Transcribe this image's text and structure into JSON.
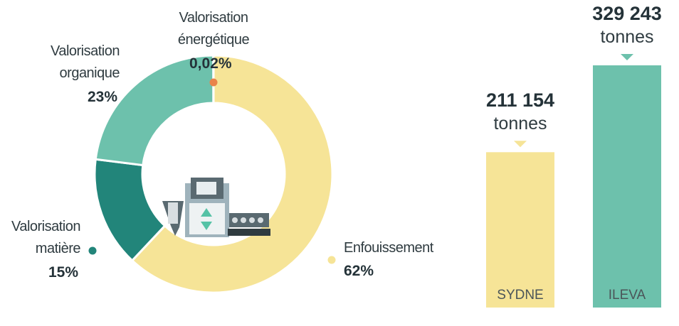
{
  "chart_data": [
    {
      "type": "pie",
      "categories": [
        "Enfouissement",
        "Valorisation matière",
        "Valorisation organique",
        "Valorisation énergétique"
      ],
      "values": [
        62,
        15,
        23,
        0.02
      ],
      "value_labels": [
        "62%",
        "15%",
        "23%",
        "0,02%"
      ],
      "colors": [
        "#f6e497",
        "#22857a",
        "#6dc1ac",
        "#e9834a"
      ],
      "donut": true
    },
    {
      "type": "bar",
      "categories": [
        "SYDNE",
        "ILEVA"
      ],
      "values": [
        211154,
        329243
      ],
      "value_labels": [
        "211 154",
        "329 243"
      ],
      "unit": "tonnes",
      "colors": [
        "#f6e497",
        "#6dc1ac"
      ]
    }
  ]
}
